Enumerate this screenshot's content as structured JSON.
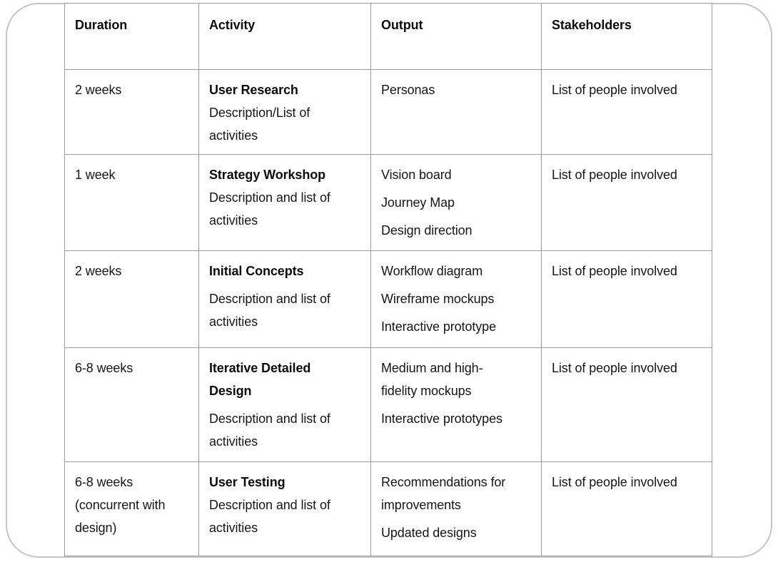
{
  "colors": {
    "background": "#ffffff",
    "card_border": "#c4c4c4",
    "table_border": "#9c9c9c",
    "text": "#161616"
  },
  "table": {
    "columns": [
      "Duration",
      "Activity",
      "Output",
      "Stakeholders"
    ],
    "rows": [
      {
        "duration": [
          {
            "lines": [
              "2 weeks"
            ]
          }
        ],
        "activity": [
          {
            "lines": [
              "User Research"
            ],
            "bold": true
          },
          {
            "lines": [
              "Description/List of",
              "activities"
            ],
            "gap": false
          }
        ],
        "output": [
          {
            "lines": [
              "Personas"
            ]
          }
        ],
        "stakeholders": [
          {
            "lines": [
              "List of people involved"
            ]
          }
        ]
      },
      {
        "duration": [
          {
            "lines": [
              "1 week"
            ]
          }
        ],
        "activity": [
          {
            "lines": [
              "Strategy Workshop"
            ],
            "bold": true
          },
          {
            "lines": [
              "Description and list of",
              "activities"
            ],
            "gap": false
          }
        ],
        "output": [
          {
            "lines": [
              "Vision board"
            ]
          },
          {
            "lines": [
              "Journey Map"
            ],
            "gap": true
          },
          {
            "lines": [
              "Design direction"
            ],
            "gap": true
          }
        ],
        "stakeholders": [
          {
            "lines": [
              "List of people involved"
            ]
          }
        ]
      },
      {
        "duration": [
          {
            "lines": [
              "2 weeks"
            ]
          }
        ],
        "activity": [
          {
            "lines": [
              "Initial Concepts"
            ],
            "bold": true
          },
          {
            "lines": [
              "Description and list of",
              "activities"
            ],
            "gap": true
          }
        ],
        "output": [
          {
            "lines": [
              "Workflow diagram"
            ]
          },
          {
            "lines": [
              "Wireframe mockups"
            ],
            "gap": true
          },
          {
            "lines": [
              "Interactive prototype"
            ],
            "gap": true
          }
        ],
        "stakeholders": [
          {
            "lines": [
              "List of people involved"
            ]
          }
        ]
      },
      {
        "duration": [
          {
            "lines": [
              "6-8 weeks"
            ]
          }
        ],
        "activity": [
          {
            "lines": [
              "Iterative Detailed",
              "Design"
            ],
            "bold": true
          },
          {
            "lines": [
              "Description and list of",
              "activities"
            ],
            "gap": true
          }
        ],
        "output": [
          {
            "lines": [
              "Medium and high-",
              "fidelity mockups"
            ]
          },
          {
            "lines": [
              "Interactive prototypes"
            ],
            "gap": true
          }
        ],
        "stakeholders": [
          {
            "lines": [
              "List of people involved"
            ]
          }
        ]
      },
      {
        "duration": [
          {
            "lines": [
              "6-8 weeks",
              "(concurrent with",
              "design)"
            ]
          }
        ],
        "activity": [
          {
            "lines": [
              "User Testing"
            ],
            "bold": true
          },
          {
            "lines": [
              "Description and list of",
              "activities"
            ],
            "gap": false
          }
        ],
        "output": [
          {
            "lines": [
              "Recommendations for",
              "improvements"
            ]
          },
          {
            "lines": [
              "Updated designs"
            ],
            "gap": true
          }
        ],
        "stakeholders": [
          {
            "lines": [
              "List of people involved"
            ]
          }
        ]
      }
    ]
  }
}
